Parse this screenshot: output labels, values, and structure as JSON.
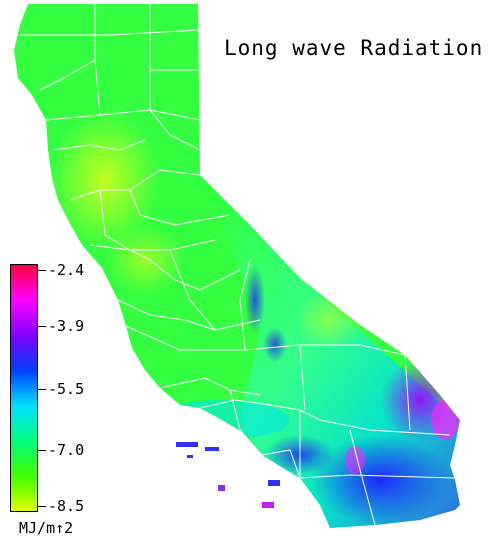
{
  "title": "Long wave Radiation",
  "legend": {
    "ticks": [
      "-2.4",
      "-3.9",
      "-5.5",
      "-7.0",
      "-8.5"
    ],
    "units": "MJ/m↑2"
  },
  "colors": {
    "scale_top": "#ff0040",
    "scale_magenta": "#ff00ff",
    "scale_purple": "#8000ff",
    "scale_blue": "#0040ff",
    "scale_cyan": "#00e0ff",
    "scale_green_cyan": "#00ff80",
    "scale_green": "#40ff00",
    "scale_yellow": "#e0ff00",
    "land_main": "#33ff33",
    "land_north": "#a8ff20",
    "land_desert": "#00e0e0",
    "land_low": "#3030ff",
    "county_lines": "#ffffff"
  }
}
